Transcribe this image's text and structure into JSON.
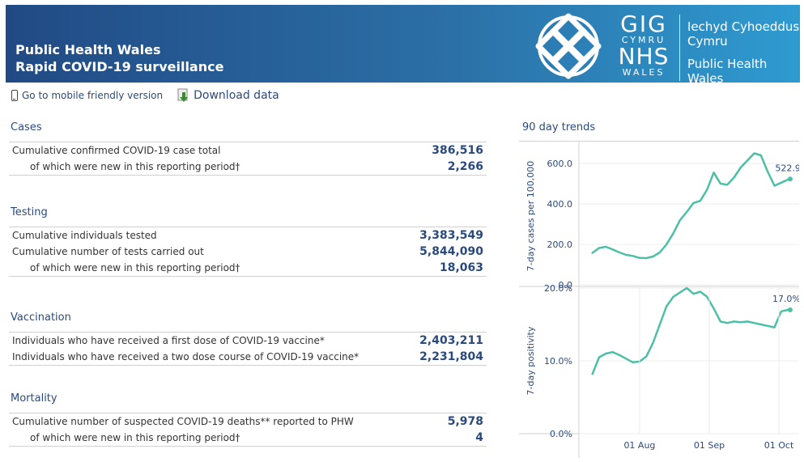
{
  "header": {
    "title_line1": "Public Health Wales",
    "title_line2": "Rapid COVID-19 surveillance",
    "logo_gig": "GIG",
    "logo_cymru": "CYMRU",
    "logo_nhs": "NHS",
    "logo_wales": "WALES",
    "welsh_line1": "Iechyd Cyhoeddus",
    "welsh_line2": "Cymru",
    "english_line1": "Public Health",
    "english_line2": "Wales"
  },
  "toolbar": {
    "mobile_label": "Go to mobile friendly version",
    "download_label": "Download data"
  },
  "sections": {
    "cases": {
      "title": "Cases",
      "rows": [
        {
          "label": "Cumulative confirmed COVID-19 case total",
          "value": "386,516"
        },
        {
          "label": "of which were new in this reporting period†",
          "value": "2,266"
        }
      ]
    },
    "testing": {
      "title": "Testing",
      "rows": [
        {
          "label": "Cumulative individuals tested",
          "value": "3,383,549"
        },
        {
          "label": "Cumulative number of tests carried out",
          "value": "5,844,090"
        },
        {
          "label": "of which were new in this reporting period†",
          "value": "18,063"
        }
      ]
    },
    "vaccination": {
      "title": "Vaccination",
      "rows": [
        {
          "label": "Individuals who have received a first dose of COVID-19 vaccine*",
          "value": "2,403,211"
        },
        {
          "label": "Individuals who have received a two dose course of COVID-19 vaccine*",
          "value": "2,231,804"
        }
      ]
    },
    "mortality": {
      "title": "Mortality",
      "rows": [
        {
          "label": "Cumulative number of suspected COVID-19 deaths** reported to PHW",
          "value": "5,978"
        },
        {
          "label": "of which were new in this reporting period†",
          "value": "4"
        }
      ]
    }
  },
  "trends": {
    "title": "90 day trends",
    "line_color": "#4dbfa5",
    "chart_data": [
      {
        "type": "line",
        "ylabel": "7-day cases per 100,000",
        "y_ticks": [
          "0.0",
          "200.0",
          "400.0",
          "600.0"
        ],
        "ylim": [
          0,
          680
        ],
        "end_label": "522.9",
        "x": [
          0,
          3,
          6,
          9,
          12,
          15,
          18,
          21,
          24,
          27,
          30,
          33,
          36,
          39,
          42,
          45,
          48,
          51,
          54,
          57,
          60,
          63,
          66,
          69,
          72,
          75,
          78,
          81,
          84,
          87,
          88
        ],
        "values": [
          158,
          182,
          188,
          175,
          160,
          148,
          143,
          133,
          132,
          140,
          160,
          200,
          255,
          320,
          360,
          405,
          415,
          470,
          555,
          500,
          495,
          530,
          580,
          615,
          650,
          640,
          560,
          490,
          505,
          520,
          523
        ]
      },
      {
        "type": "line",
        "ylabel": "7-day positivity",
        "y_ticks": [
          "0.0%",
          "10.0%",
          "20.0%"
        ],
        "ylim": [
          0,
          20
        ],
        "end_label": "17.0%",
        "x_ticks": [
          "01 Aug",
          "01 Sep",
          "01 Oct"
        ],
        "x_tick_positions": [
          21,
          52,
          83
        ],
        "x": [
          0,
          3,
          6,
          9,
          12,
          15,
          18,
          21,
          24,
          27,
          30,
          33,
          36,
          39,
          42,
          45,
          48,
          51,
          54,
          57,
          60,
          63,
          66,
          69,
          72,
          75,
          78,
          81,
          84,
          87,
          88
        ],
        "values": [
          8.2,
          10.5,
          11.0,
          11.2,
          10.8,
          10.3,
          9.8,
          9.9,
          10.6,
          12.5,
          15.0,
          17.5,
          18.8,
          19.4,
          20.0,
          19.2,
          19.5,
          18.8,
          17.2,
          15.4,
          15.2,
          15.4,
          15.3,
          15.4,
          15.2,
          15.0,
          14.8,
          14.6,
          16.8,
          17.0,
          17.0
        ]
      }
    ]
  }
}
